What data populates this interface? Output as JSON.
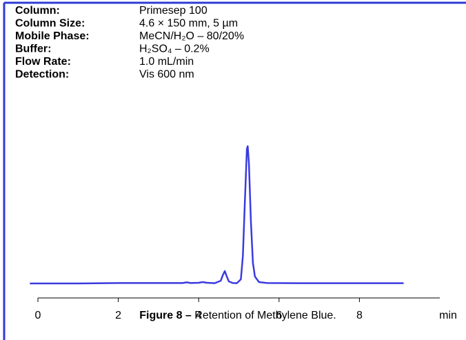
{
  "chart_data": {
    "type": "line",
    "conditions": [
      {
        "label": "Column:",
        "value": "Primesep 100"
      },
      {
        "label": "Column Size:",
        "value": "4.6 × 150 mm, 5 µm"
      },
      {
        "label": "Mobile Phase:",
        "value": "MeCN/H₂O – 80/20%"
      },
      {
        "label": "Buffer:",
        "value": "H₂SO₄ – 0.2%"
      },
      {
        "label": "Flow Rate:",
        "value": "1.0 mL/min"
      },
      {
        "label": "Detection:",
        "value": "Vis 600 nm"
      }
    ],
    "x_label": "min",
    "caption": {
      "label": "Figure 8 –",
      "text": "Retention of Methylene Blue."
    },
    "x": [
      -0.2,
      1.0,
      2.0,
      3.0,
      3.6,
      3.7,
      3.8,
      4.0,
      4.1,
      4.2,
      4.4,
      4.55,
      4.6,
      4.65,
      4.7,
      4.75,
      4.85,
      4.95,
      5.05,
      5.1,
      5.15,
      5.2,
      5.22,
      5.25,
      5.3,
      5.35,
      5.4,
      5.5,
      5.7,
      6.5,
      8.0,
      9.1
    ],
    "values": [
      0,
      0,
      0.3,
      0.3,
      0.3,
      0.8,
      0.3,
      0.5,
      1.0,
      0.5,
      0.2,
      2,
      6,
      9,
      5,
      1.5,
      0.3,
      0.2,
      3,
      20,
      60,
      98,
      100,
      88,
      45,
      15,
      5,
      1,
      0.3,
      0.2,
      0.2,
      0.2
    ],
    "color": "#3a3ae0",
    "xlim": [
      0,
      10
    ],
    "xticks": [
      0,
      2,
      4,
      6,
      8
    ],
    "ylim": [
      0,
      100
    ]
  }
}
